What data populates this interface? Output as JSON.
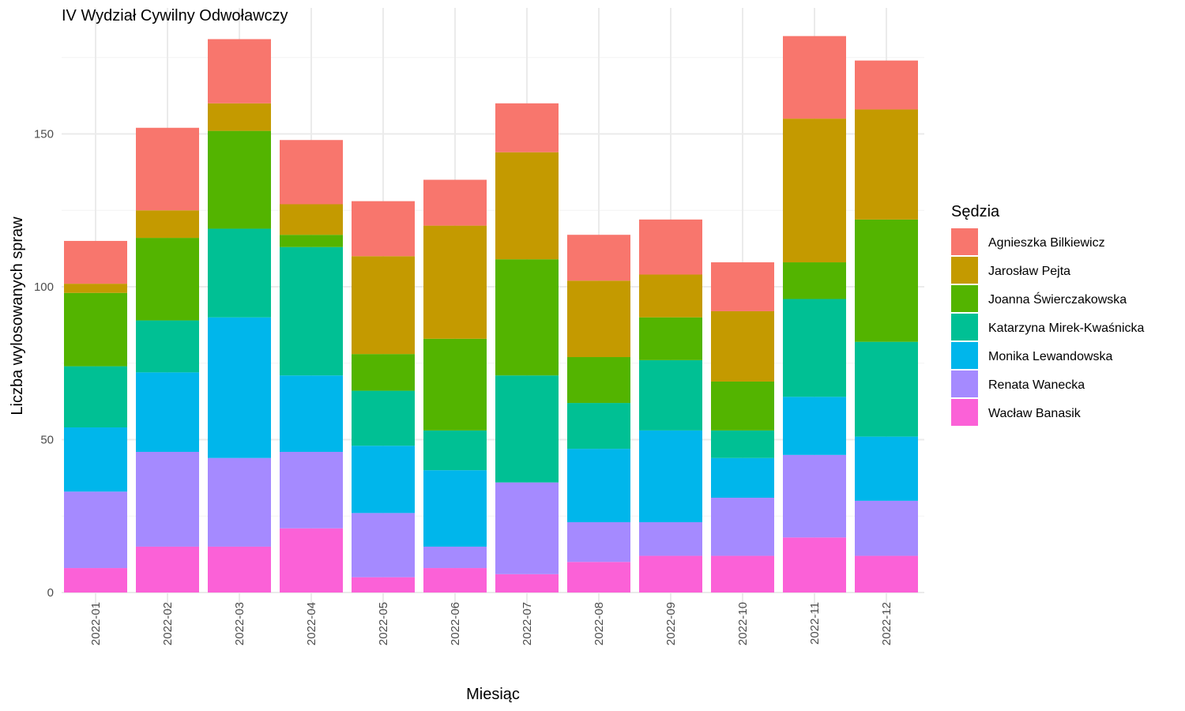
{
  "chart_data": {
    "type": "bar",
    "stacked": true,
    "title": "IV Wydział Cywilny Odwoławczy",
    "xlabel": "Miesiąc",
    "ylabel": "Liczba wylosowanych spraw",
    "ylim": [
      0,
      185
    ],
    "yticks": [
      0,
      50,
      100,
      150
    ],
    "grid": true,
    "legend_title": "Sędzia",
    "legend_position": "right",
    "categories": [
      "2022-01",
      "2022-02",
      "2022-03",
      "2022-04",
      "2022-05",
      "2022-06",
      "2022-07",
      "2022-08",
      "2022-09",
      "2022-10",
      "2022-11",
      "2022-12"
    ],
    "series": [
      {
        "name": "Agnieszka Bilkiewicz",
        "color": "#F8766D",
        "values": [
          14,
          27,
          21,
          21,
          18,
          15,
          16,
          15,
          18,
          16,
          27,
          16
        ]
      },
      {
        "name": "Jarosław Pejta",
        "color": "#C49A00",
        "values": [
          3,
          9,
          9,
          10,
          32,
          37,
          35,
          25,
          14,
          23,
          47,
          36
        ]
      },
      {
        "name": "Joanna Świerczakowska",
        "color": "#53B400",
        "values": [
          24,
          27,
          32,
          4,
          12,
          30,
          38,
          15,
          14,
          16,
          12,
          40
        ]
      },
      {
        "name": "Katarzyna Mirek-Kwaśnicka",
        "color": "#00C094",
        "values": [
          20,
          17,
          29,
          42,
          18,
          13,
          35,
          15,
          23,
          9,
          32,
          31
        ]
      },
      {
        "name": "Monika Lewandowska",
        "color": "#00B6EB",
        "values": [
          21,
          26,
          46,
          25,
          22,
          25,
          0,
          24,
          30,
          13,
          19,
          21
        ]
      },
      {
        "name": "Renata Wanecka",
        "color": "#A58AFF",
        "values": [
          25,
          31,
          29,
          25,
          21,
          7,
          30,
          13,
          11,
          19,
          27,
          18
        ]
      },
      {
        "name": "Wacław Banasik",
        "color": "#FB61D7",
        "values": [
          8,
          15,
          15,
          21,
          5,
          8,
          6,
          10,
          12,
          12,
          18,
          12
        ]
      }
    ]
  }
}
